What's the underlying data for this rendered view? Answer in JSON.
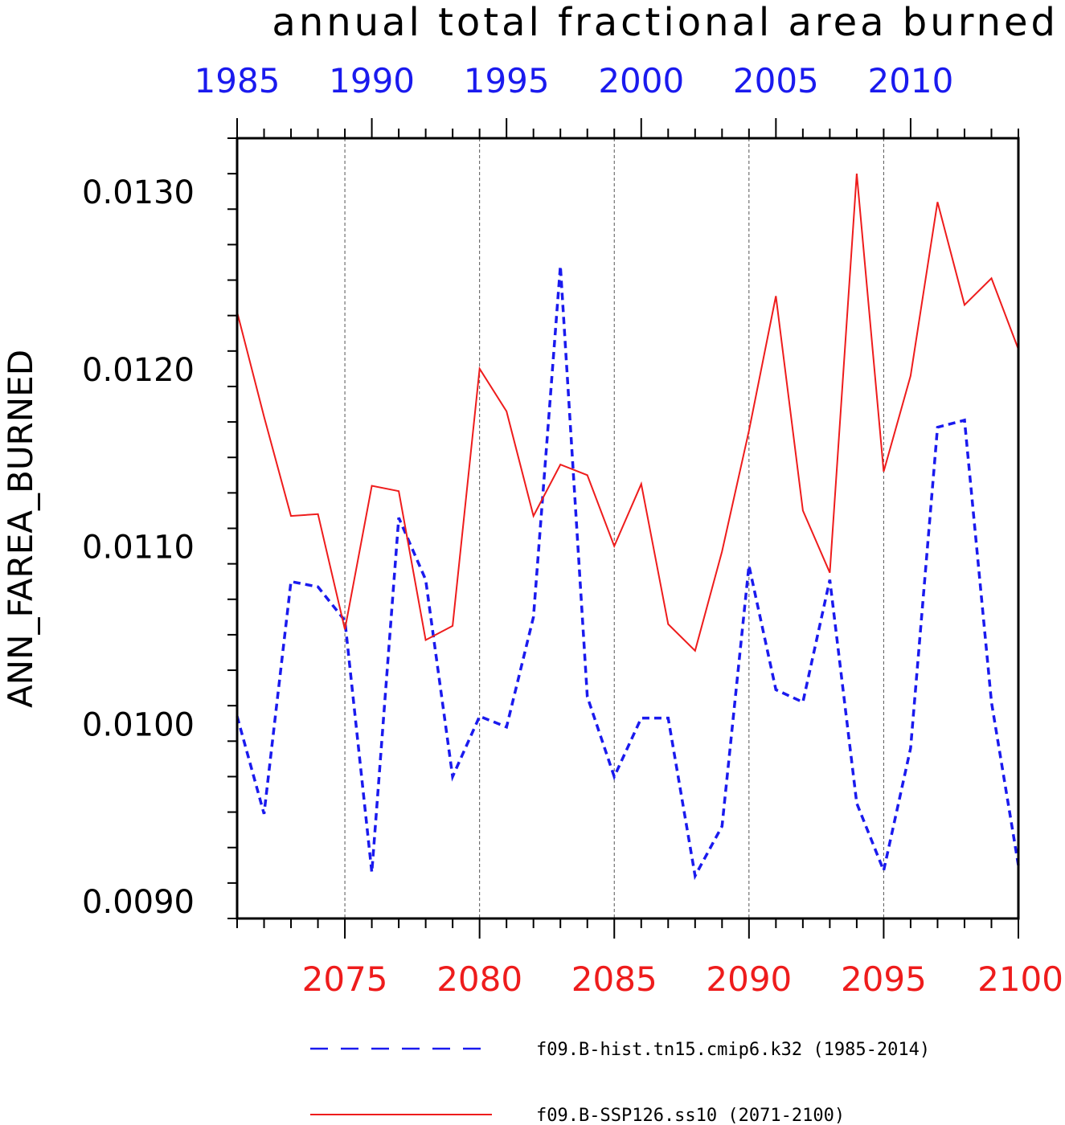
{
  "chart_data": {
    "type": "line",
    "title": "annual total fractional area burned",
    "ylabel": "ANN_FAREA_BURNED",
    "ylim": [
      0.0089,
      0.0133
    ],
    "yticks": [
      "0.0090",
      "0.0100",
      "0.0110",
      "0.0120",
      "0.0130"
    ],
    "grid": "vertical dashed lines at labeled x ticks",
    "legend_placement": "bottom",
    "top_axis": {
      "labels": [
        "1985",
        "1990",
        "1995",
        "2000",
        "2005",
        "2010"
      ],
      "color": "#1a1aee"
    },
    "bottom_axis": {
      "labels": [
        "2075",
        "2080",
        "2085",
        "2090",
        "2095",
        "2100"
      ],
      "color": "#ee1c1c"
    },
    "series": [
      {
        "name": "f09.B-hist.tn15.cmip6.k32 (1985-2014)",
        "axis": "top",
        "style": "dashed",
        "color": "#1a1aee",
        "x": [
          1985,
          1986,
          1987,
          1988,
          1989,
          1990,
          1991,
          1992,
          1993,
          1994,
          1995,
          1996,
          1997,
          1998,
          1999,
          2000,
          2001,
          2002,
          2003,
          2004,
          2005,
          2006,
          2007,
          2008,
          2009,
          2010,
          2011,
          2012,
          2013,
          2014
        ],
        "values": [
          0.01004,
          0.00949,
          0.0108,
          0.01077,
          0.01058,
          0.00916,
          0.01116,
          0.01081,
          0.0097,
          0.01004,
          0.00998,
          0.0106,
          0.01258,
          0.01015,
          0.0097,
          0.01003,
          0.01003,
          0.00914,
          0.00942,
          0.01089,
          0.01019,
          0.01012,
          0.01081,
          0.00955,
          0.00917,
          0.00986,
          0.01167,
          0.01171,
          0.01012,
          0.0092
        ]
      },
      {
        "name": "f09.B-SSP126.ss10 (2071-2100)",
        "axis": "bottom",
        "style": "solid",
        "color": "#ee1c1c",
        "x": [
          2071,
          2072,
          2073,
          2074,
          2075,
          2076,
          2077,
          2078,
          2079,
          2080,
          2081,
          2082,
          2083,
          2084,
          2085,
          2086,
          2087,
          2088,
          2089,
          2090,
          2091,
          2092,
          2093,
          2094,
          2095,
          2096,
          2097,
          2098,
          2099,
          2100
        ],
        "values": [
          0.01232,
          0.01173,
          0.01117,
          0.01118,
          0.01053,
          0.01134,
          0.01131,
          0.01047,
          0.01055,
          0.012,
          0.01176,
          0.01117,
          0.01146,
          0.0114,
          0.011,
          0.01135,
          0.01056,
          0.01041,
          0.01097,
          0.01165,
          0.01241,
          0.0112,
          0.01085,
          0.0131,
          0.01142,
          0.01196,
          0.01294,
          0.01236,
          0.01251,
          0.01211
        ]
      }
    ]
  }
}
